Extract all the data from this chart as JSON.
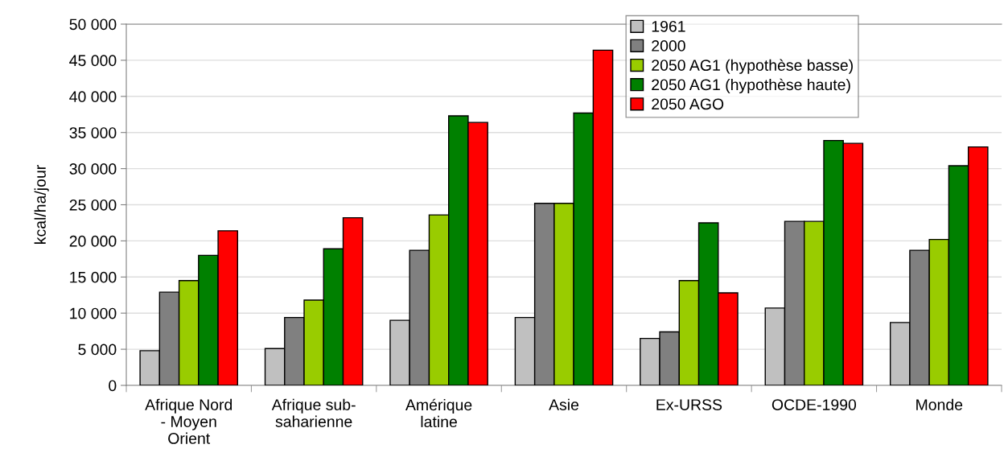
{
  "chart_data": {
    "type": "bar",
    "ylabel": "kcal/ha/jour",
    "categories": [
      "Afrique Nord\n- Moyen\nOrient",
      "Afrique sub-\nsaharienne",
      "Amérique\nlatine",
      "Asie",
      "Ex-URSS",
      "OCDE-1990",
      "Monde"
    ],
    "series": [
      {
        "name": "1961",
        "color": "#c0c0c0",
        "values": [
          4800,
          5100,
          9000,
          9400,
          6500,
          10700,
          8700
        ]
      },
      {
        "name": "2000",
        "color": "#808080",
        "values": [
          12900,
          9400,
          18700,
          25200,
          7400,
          22700,
          18700
        ]
      },
      {
        "name": "2050 AG1 (hypothèse basse)",
        "color": "#99cc00",
        "values": [
          14500,
          11800,
          23600,
          25200,
          14500,
          22700,
          20200
        ]
      },
      {
        "name": "2050 AG1 (hypothèse haute)",
        "color": "#008000",
        "values": [
          18000,
          18900,
          37300,
          37700,
          22500,
          33900,
          30400
        ]
      },
      {
        "name": "2050 AGO",
        "color": "#ff0000",
        "values": [
          21400,
          23200,
          36400,
          46400,
          12800,
          33500,
          33000
        ]
      }
    ],
    "ylim": [
      0,
      50000
    ],
    "yticks": [
      {
        "value": 0,
        "label": "0"
      },
      {
        "value": 5000,
        "label": "5 000"
      },
      {
        "value": 10000,
        "label": "10 000"
      },
      {
        "value": 15000,
        "label": "15 000"
      },
      {
        "value": 20000,
        "label": "20 000"
      },
      {
        "value": 25000,
        "label": "25 000"
      },
      {
        "value": 30000,
        "label": "30 000"
      },
      {
        "value": 35000,
        "label": "35 000"
      },
      {
        "value": 40000,
        "label": "40 000"
      },
      {
        "value": 45000,
        "label": "45 000"
      },
      {
        "value": 50000,
        "label": "50 000"
      }
    ],
    "grid": "y",
    "legend": "top"
  }
}
